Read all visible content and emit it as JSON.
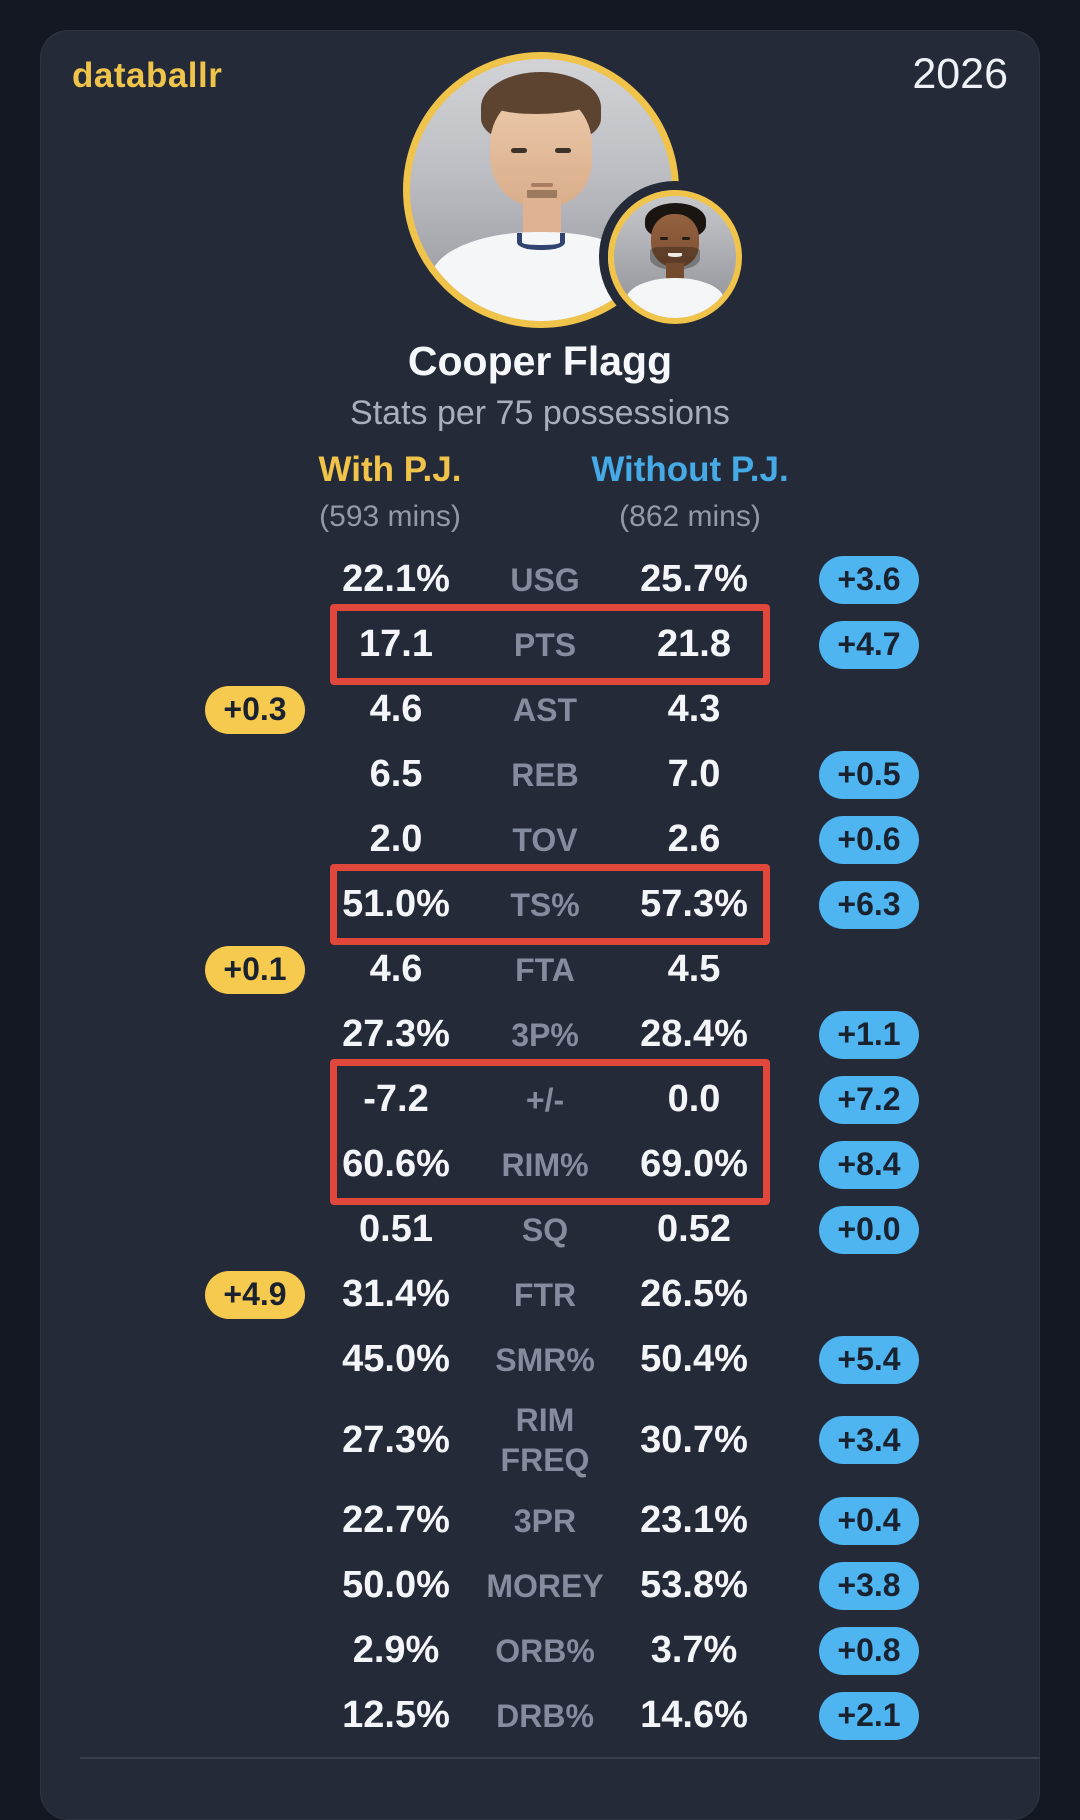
{
  "header": {
    "brand": "databallr",
    "year": "2026"
  },
  "player": {
    "name": "Cooper Flagg",
    "subtitle": "Stats per 75 possessions"
  },
  "columns": {
    "left": {
      "label": "With P.J.",
      "sub": "(593 mins)"
    },
    "right": {
      "label": "Without P.J.",
      "sub": "(862 mins)"
    }
  },
  "table": {
    "rows": [
      {
        "stat": "USG",
        "with": "22.1%",
        "without": "25.7%",
        "diff": "+3.6",
        "diff_side": "right"
      },
      {
        "stat": "PTS",
        "with": "17.1",
        "without": "21.8",
        "diff": "+4.7",
        "diff_side": "right"
      },
      {
        "stat": "AST",
        "with": "4.6",
        "without": "4.3",
        "diff": "+0.3",
        "diff_side": "left"
      },
      {
        "stat": "REB",
        "with": "6.5",
        "without": "7.0",
        "diff": "+0.5",
        "diff_side": "right"
      },
      {
        "stat": "TOV",
        "with": "2.0",
        "without": "2.6",
        "diff": "+0.6",
        "diff_side": "right"
      },
      {
        "stat": "TS%",
        "with": "51.0%",
        "without": "57.3%",
        "diff": "+6.3",
        "diff_side": "right"
      },
      {
        "stat": "FTA",
        "with": "4.6",
        "without": "4.5",
        "diff": "+0.1",
        "diff_side": "left"
      },
      {
        "stat": "3P%",
        "with": "27.3%",
        "without": "28.4%",
        "diff": "+1.1",
        "diff_side": "right"
      },
      {
        "stat": "+/-",
        "with": "-7.2",
        "without": "0.0",
        "diff": "+7.2",
        "diff_side": "right"
      },
      {
        "stat": "RIM%",
        "with": "60.6%",
        "without": "69.0%",
        "diff": "+8.4",
        "diff_side": "right"
      },
      {
        "stat": "SQ",
        "with": "0.51",
        "without": "0.52",
        "diff": "+0.0",
        "diff_side": "right"
      },
      {
        "stat": "FTR",
        "with": "31.4%",
        "without": "26.5%",
        "diff": "+4.9",
        "diff_side": "left"
      },
      {
        "stat": "SMR%",
        "with": "45.0%",
        "without": "50.4%",
        "diff": "+5.4",
        "diff_side": "right"
      },
      {
        "stat": "RIM FREQ",
        "with": "27.3%",
        "without": "30.7%",
        "diff": "+3.4",
        "diff_side": "right",
        "tall": true
      },
      {
        "stat": "3PR",
        "with": "22.7%",
        "without": "23.1%",
        "diff": "+0.4",
        "diff_side": "right"
      },
      {
        "stat": "MOREY",
        "with": "50.0%",
        "without": "53.8%",
        "diff": "+3.8",
        "diff_side": "right"
      },
      {
        "stat": "ORB%",
        "with": "2.9%",
        "without": "3.7%",
        "diff": "+0.8",
        "diff_side": "right"
      },
      {
        "stat": "DRB%",
        "with": "12.5%",
        "without": "14.6%",
        "diff": "+2.1",
        "diff_side": "right"
      }
    ],
    "highlight_boxes": [
      {
        "from": 1,
        "to": 1
      },
      {
        "from": 5,
        "to": 5
      },
      {
        "from": 8,
        "to": 9
      }
    ]
  },
  "colors": {
    "outer-bg": "#141823",
    "card-bg": "#242a38",
    "gold": "#f0c34a",
    "blue": "#45aae6",
    "pill-blue": "#4eb5f1",
    "pill-yellow": "#f6c94f",
    "red": "#e2473c",
    "value": "#f3f5f9",
    "label": "#858c9d"
  },
  "chart_data": {
    "type": "table",
    "title": "Cooper Flagg",
    "subtitle": "Stats per 75 possessions",
    "categories": [
      "USG",
      "PTS",
      "AST",
      "REB",
      "TOV",
      "TS%",
      "FTA",
      "3P%",
      "+/-",
      "RIM%",
      "SQ",
      "FTR",
      "SMR%",
      "RIM FREQ",
      "3PR",
      "MOREY",
      "ORB%",
      "DRB%"
    ],
    "series": [
      {
        "name": "With P.J. (593 mins)",
        "values": [
          22.1,
          17.1,
          4.6,
          6.5,
          2.0,
          51.0,
          4.6,
          27.3,
          -7.2,
          60.6,
          0.51,
          31.4,
          45.0,
          27.3,
          22.7,
          50.0,
          2.9,
          12.5
        ]
      },
      {
        "name": "Without P.J. (862 mins)",
        "values": [
          25.7,
          21.8,
          4.3,
          7.0,
          2.6,
          57.3,
          4.5,
          28.4,
          0.0,
          69.0,
          0.52,
          26.5,
          50.4,
          30.7,
          23.1,
          53.8,
          3.7,
          14.6
        ]
      },
      {
        "name": "Difference",
        "values": [
          3.6,
          4.7,
          0.3,
          0.5,
          0.6,
          6.3,
          0.1,
          1.1,
          7.2,
          8.4,
          0.0,
          4.9,
          5.4,
          3.4,
          0.4,
          3.8,
          0.8,
          2.1
        ]
      }
    ],
    "annotations": [
      "red boxes highlight PTS, TS%, and +/- with RIM% rows",
      "yellow badges mark stats better With P.J., blue badges mark stats better Without P.J."
    ]
  }
}
